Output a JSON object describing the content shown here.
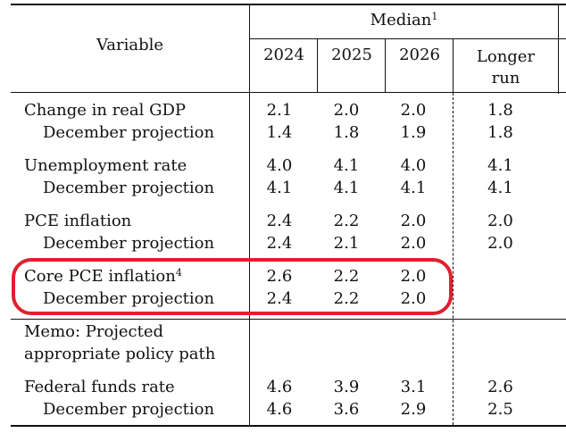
{
  "header": {
    "variable": "Variable",
    "median": "Median",
    "median_note": "1",
    "years": [
      "2024",
      "2025",
      "2026"
    ],
    "longer_run_line1": "Longer",
    "longer_run_line2": "run"
  },
  "rows": [
    {
      "label": "Change in real GDP",
      "note": "",
      "values": [
        "2.1",
        "2.0",
        "2.0",
        "1.8"
      ]
    },
    {
      "label": "December projection",
      "note": "",
      "values": [
        "1.4",
        "1.8",
        "1.9",
        "1.8"
      ]
    },
    {
      "label": "Unemployment rate",
      "note": "",
      "values": [
        "4.0",
        "4.1",
        "4.0",
        "4.1"
      ]
    },
    {
      "label": "December projection",
      "note": "",
      "values": [
        "4.1",
        "4.1",
        "4.1",
        "4.1"
      ]
    },
    {
      "label": "PCE inflation",
      "note": "",
      "values": [
        "2.4",
        "2.2",
        "2.0",
        "2.0"
      ]
    },
    {
      "label": "December projection",
      "note": "",
      "values": [
        "2.4",
        "2.1",
        "2.0",
        "2.0"
      ]
    },
    {
      "label": "Core PCE inflation",
      "note": "4",
      "values": [
        "2.6",
        "2.2",
        "2.0",
        ""
      ]
    },
    {
      "label": "December projection",
      "note": "",
      "values": [
        "2.4",
        "2.2",
        "2.0",
        ""
      ]
    }
  ],
  "memo": {
    "line1": "Memo: Projected",
    "line2": "appropriate policy path"
  },
  "memo_rows": [
    {
      "label": "Federal funds rate",
      "values": [
        "4.6",
        "3.9",
        "3.1",
        "2.6"
      ]
    },
    {
      "label": "December projection",
      "values": [
        "4.6",
        "3.6",
        "2.9",
        "2.5"
      ]
    }
  ],
  "highlight_color": "#e0202e"
}
